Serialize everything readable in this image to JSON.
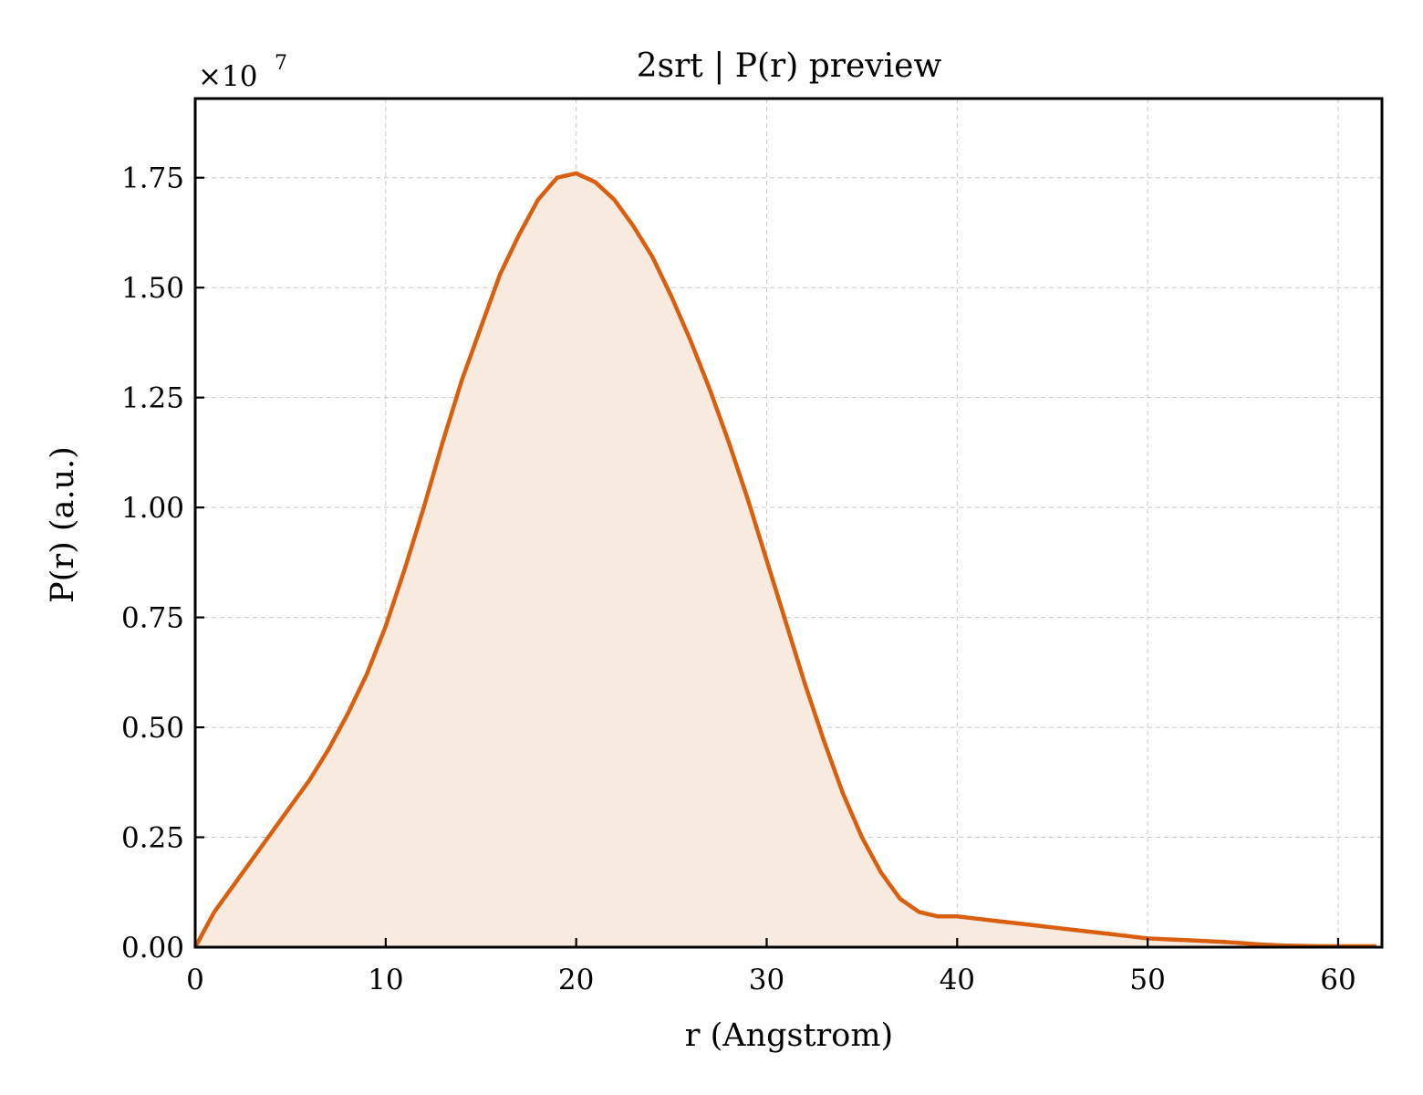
{
  "chart_data": {
    "type": "area",
    "title": "2srt | P(r) preview",
    "xlabel": "r (Angstrom)",
    "ylabel": "P(r) (a.u.)",
    "y_multiplier_label": "×10",
    "y_multiplier_exponent": "7",
    "xlim": [
      0,
      62.3
    ],
    "ylim": [
      0,
      1.93
    ],
    "x_ticks": [
      0,
      10,
      20,
      30,
      40,
      50,
      60
    ],
    "x_tick_labels": [
      "0",
      "10",
      "20",
      "30",
      "40",
      "50",
      "60"
    ],
    "y_ticks": [
      0,
      0.25,
      0.5,
      0.75,
      1.0,
      1.25,
      1.5,
      1.75
    ],
    "y_tick_labels": [
      "0.00",
      "0.25",
      "0.50",
      "0.75",
      "1.00",
      "1.25",
      "1.50",
      "1.75"
    ],
    "grid": true,
    "legend": "none",
    "line_color": "#d95f0e",
    "fill_color": "#f9eadf",
    "series": [
      {
        "x": [
          0,
          1,
          2,
          3,
          4,
          5,
          6,
          7,
          8,
          9,
          10,
          11,
          12,
          13,
          14,
          15,
          16,
          17,
          18,
          19,
          20,
          21,
          22,
          23,
          24,
          25,
          26,
          27,
          28,
          29,
          30,
          31,
          32,
          33,
          34,
          35,
          36,
          37,
          38,
          39,
          40,
          41,
          42,
          43,
          44,
          45,
          46,
          47,
          48,
          49,
          50,
          51,
          52,
          53,
          54,
          55,
          56,
          57,
          58,
          59,
          60,
          61,
          62
        ],
        "values": [
          0.0,
          0.08,
          0.14,
          0.2,
          0.26,
          0.32,
          0.38,
          0.45,
          0.53,
          0.62,
          0.73,
          0.86,
          1.0,
          1.15,
          1.29,
          1.41,
          1.53,
          1.62,
          1.7,
          1.75,
          1.76,
          1.74,
          1.7,
          1.64,
          1.57,
          1.48,
          1.38,
          1.27,
          1.15,
          1.02,
          0.88,
          0.74,
          0.6,
          0.47,
          0.35,
          0.25,
          0.17,
          0.11,
          0.08,
          0.07,
          0.07,
          0.065,
          0.06,
          0.055,
          0.05,
          0.045,
          0.04,
          0.035,
          0.03,
          0.025,
          0.02,
          0.018,
          0.016,
          0.014,
          0.012,
          0.009,
          0.006,
          0.004,
          0.003,
          0.002,
          0.002,
          0.002,
          0.002
        ]
      }
    ]
  }
}
